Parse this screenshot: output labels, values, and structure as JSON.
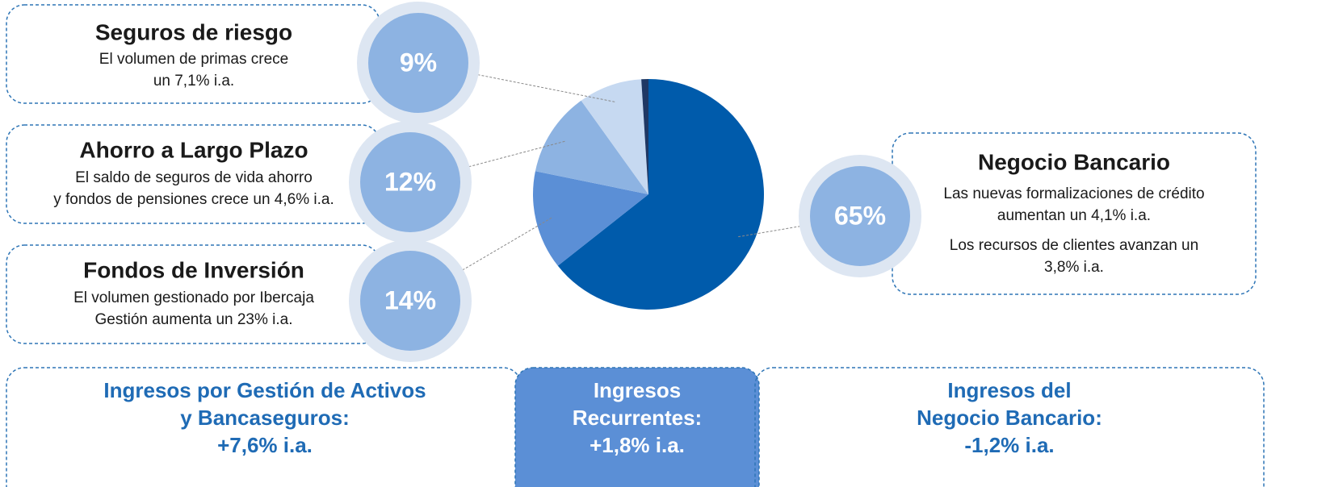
{
  "chart_data": {
    "type": "pie",
    "categories": [
      "Negocio Bancario",
      "Fondos de Inversión",
      "Ahorro a Largo Plazo",
      "Seguros de riesgo",
      null
    ],
    "values": [
      65,
      14,
      12,
      9,
      1
    ],
    "value_labels": [
      "65%",
      "14%",
      "12%",
      "9%",
      null
    ],
    "colors": [
      "#005bab",
      "#5b8fd6",
      "#8db3e2",
      "#c6d9f1",
      "#1f3864"
    ],
    "descriptions": [
      [
        "Las nuevas formalizaciones de crédito",
        "aumentan un 4,1% i.a.",
        "Los recursos de clientes avanzan un",
        "3,8% i.a."
      ],
      [
        "El volumen gestionado por Ibercaja",
        "Gestión aumenta un 23% i.a."
      ],
      [
        "El saldo de seguros de vida ahorro",
        "y fondos de pensiones crece un 4,6% i.a."
      ],
      [
        "El volumen de primas crece",
        "un 7,1% i.a."
      ],
      null
    ]
  },
  "summary": [
    [
      "Ingresos por Gestión de Activos",
      "y Bancaseguros:",
      "+7,6% i.a."
    ],
    [
      "Ingresos",
      "Recurrentes:",
      "+1,8% i.a."
    ],
    [
      "Ingresos del",
      "Negocio Bancario:",
      "-1,2% i.a."
    ]
  ]
}
